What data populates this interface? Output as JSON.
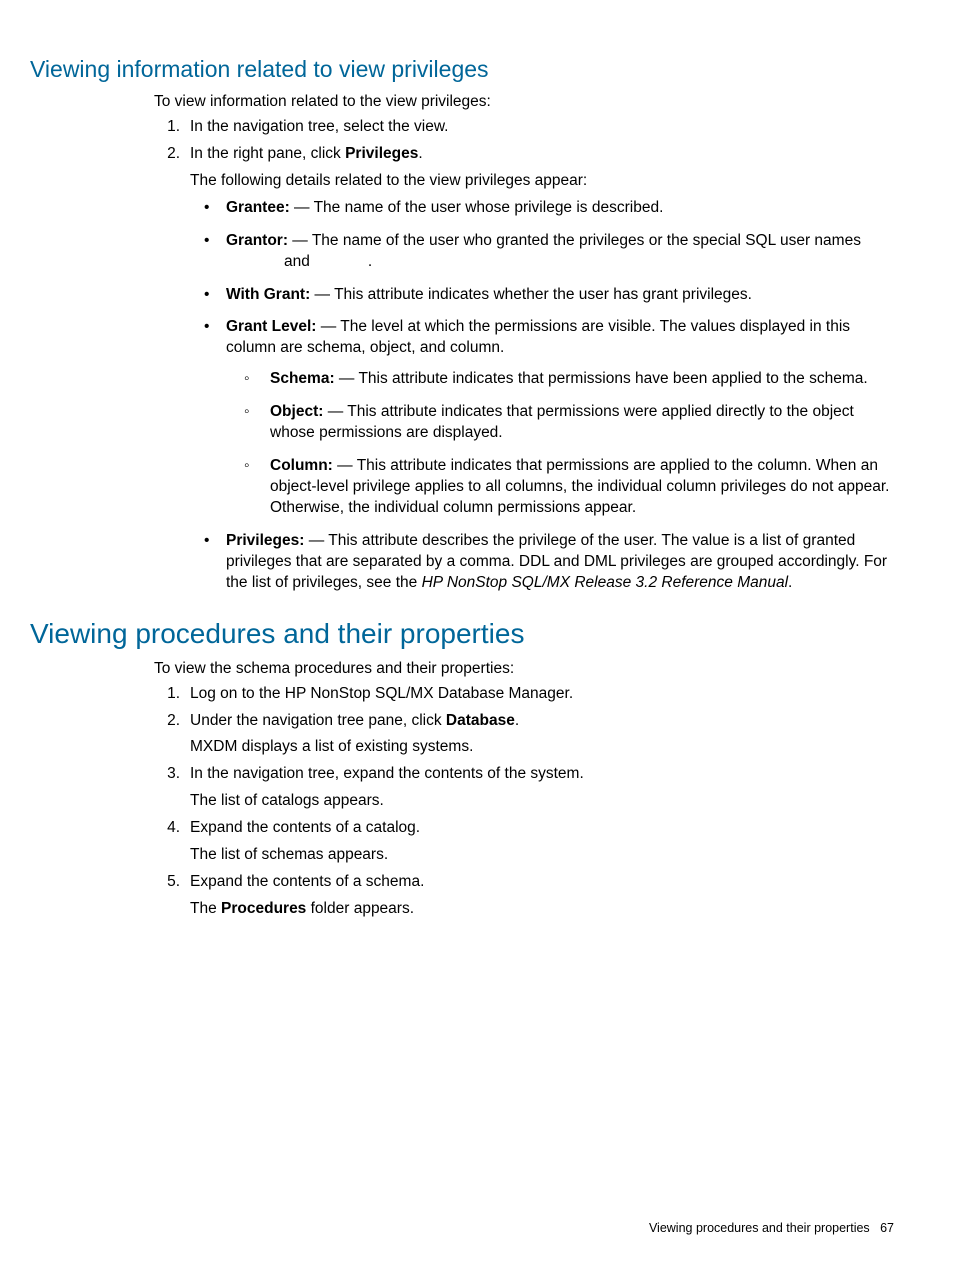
{
  "section1": {
    "heading": "Viewing information related to view privileges",
    "intro": "To view information related to the view privileges:",
    "step1": "In the navigation tree, select the view.",
    "step2_pre": "In the right pane, click ",
    "step2_bold": "Privileges",
    "step2_post": ".",
    "step2_sub": "The following details related to the view privileges appear:",
    "grantee_label": "Grantee:",
    "grantee_text": " — The name of the user whose privilege is described.",
    "grantor_label": "Grantor:",
    "grantor_text": " — The name of the user who granted the privileges or the special SQL user names",
    "grantor_and": "and",
    "grantor_end": ".",
    "withgrant_label": "With Grant:",
    "withgrant_text": " — This attribute indicates whether the user has grant privileges.",
    "grantlevel_label": "Grant Level:",
    "grantlevel_text": "  — The level at which the permissions are visible. The values displayed in this column are schema, object, and column.",
    "schema_label": "Schema:",
    "schema_text": " — This attribute indicates that permissions have been applied to the schema.",
    "object_label": "Object:",
    "object_text": " — This attribute indicates that permissions were applied directly to the object whose permissions are displayed.",
    "column_label": "Column:",
    "column_text": " — This attribute indicates that permissions are applied to the column. When an object-level privilege applies to all columns, the individual column privileges do not appear. Otherwise, the individual column permissions appear.",
    "privileges_label": "Privileges:",
    "privileges_text": " — This attribute describes the privilege of the user. The value is a list of granted privileges that are separated by a comma. DDL and DML privileges are grouped accordingly. For the list of privileges, see the ",
    "privileges_ref": "HP NonStop SQL/MX Release 3.2 Reference Manual",
    "privileges_end": "."
  },
  "section2": {
    "heading": "Viewing procedures and their properties",
    "intro": "To view the schema procedures and their properties:",
    "step1": "Log on to the HP NonStop SQL/MX Database Manager.",
    "step2_pre": "Under the navigation tree pane, click ",
    "step2_bold": "Database",
    "step2_post": ".",
    "step2_sub": "MXDM displays a list of existing systems.",
    "step3": "In the navigation tree, expand the contents of the system.",
    "step3_sub": "The list of catalogs appears.",
    "step4": "Expand the contents of a catalog.",
    "step4_sub": "The list of schemas appears.",
    "step5": "Expand the contents of a schema.",
    "step5_sub_pre": "The ",
    "step5_sub_bold": "Procedures",
    "step5_sub_post": " folder appears."
  },
  "footer": {
    "text": "Viewing procedures and their properties",
    "page": "67"
  }
}
